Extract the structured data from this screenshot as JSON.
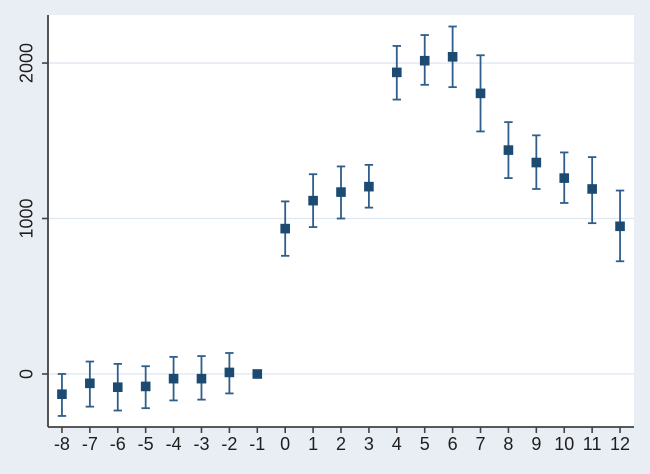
{
  "chart_data": {
    "type": "scatter",
    "subtype": "point-estimates-with-confidence-intervals",
    "title": "",
    "xlabel": "",
    "ylabel": "",
    "x": [
      -8,
      -7,
      -6,
      -5,
      -4,
      -3,
      -2,
      -1,
      0,
      1,
      2,
      3,
      4,
      5,
      6,
      7,
      8,
      9,
      10,
      11,
      12
    ],
    "estimates": [
      -130,
      -60,
      -85,
      -80,
      -30,
      -30,
      10,
      0,
      935,
      1115,
      1170,
      1205,
      1940,
      2015,
      2040,
      1805,
      1440,
      1360,
      1260,
      1190,
      950
    ],
    "ci_low": [
      -270,
      -210,
      -235,
      -220,
      -170,
      -165,
      -125,
      null,
      760,
      945,
      1000,
      1070,
      1765,
      1860,
      1845,
      1560,
      1260,
      1190,
      1100,
      970,
      725
    ],
    "ci_high": [
      0,
      80,
      65,
      50,
      110,
      115,
      135,
      null,
      1110,
      1285,
      1335,
      1345,
      2110,
      2180,
      2235,
      2050,
      1620,
      1535,
      1425,
      1395,
      1180
    ],
    "xtick_labels": [
      "-8",
      "-7",
      "-6",
      "-5",
      "-4",
      "-3",
      "-2",
      "-1",
      "0",
      "1",
      "2",
      "3",
      "4",
      "5",
      "6",
      "7",
      "8",
      "9",
      "10",
      "11",
      "12"
    ],
    "yticks": [
      0,
      1000,
      2000
    ],
    "ytick_labels": [
      "0",
      "1000",
      "2000"
    ],
    "xlim": [
      -8.5,
      12.5
    ],
    "ylim": [
      -341,
      2309
    ],
    "grid": true,
    "legend": "none",
    "colors": {
      "background": "#e8eef4",
      "plot_background": "#ffffff",
      "gridline": "#dde8f1",
      "axis": "#424242",
      "tick_text": "#1e1e1e",
      "marker": "#1c4a70",
      "ci_line": "#2f5e8c"
    }
  }
}
